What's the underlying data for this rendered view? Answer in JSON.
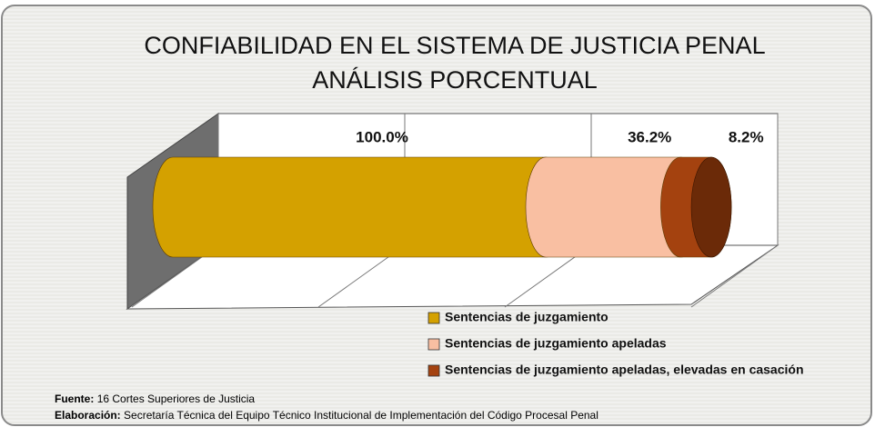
{
  "chart_data": {
    "type": "bar3d_stacked_horizontal",
    "title": "CONFIABILIDAD EN EL SISTEMA DE JUSTICIA PENAL",
    "subtitle": "ANÁLISIS PORCENTUAL",
    "series": [
      {
        "name": "Sentencias de juzgamiento",
        "color": "#d4a100",
        "values": [
          100.0
        ],
        "value_labels": [
          "100.0%"
        ]
      },
      {
        "name": "Sentencias de juzgamiento apeladas",
        "color": "#f9bfa2",
        "values": [
          36.2
        ],
        "value_labels": [
          "36.2%"
        ]
      },
      {
        "name": "Sentencias de juzgamiento apeladas, elevadas en casación",
        "color": "#a4420f",
        "values": [
          8.2
        ],
        "value_labels": [
          "8.2%"
        ]
      }
    ],
    "xlim": [
      0,
      150
    ],
    "xticks": [
      0,
      50,
      100,
      150
    ],
    "grid": true,
    "source_label": "Fuente:",
    "source": "16 Cortes Superiores de Justicia",
    "credit_label": "Elaboración:",
    "credit": "Secretaría Técnica del Equipo Técnico Institucional de Implementación del Código Procesal Penal"
  }
}
